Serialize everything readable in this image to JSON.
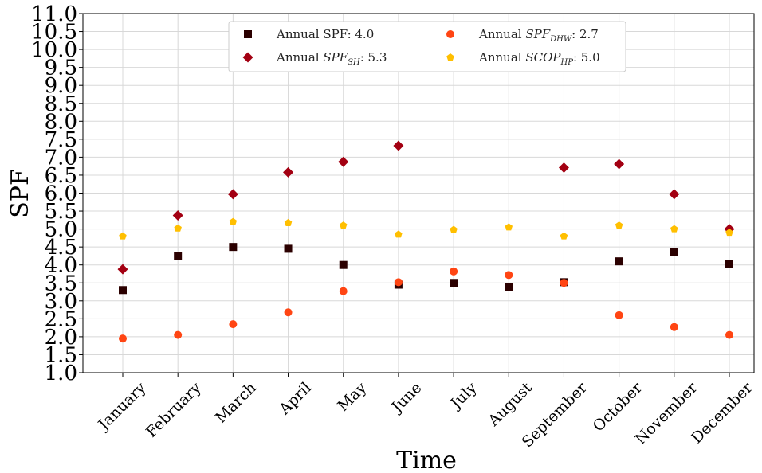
{
  "chart_data": {
    "type": "scatter",
    "xlabel": "Time",
    "ylabel": "SPF",
    "categories": [
      "January",
      "February",
      "March",
      "April",
      "May",
      "June",
      "July",
      "August",
      "September",
      "October",
      "November",
      "December"
    ],
    "ylim": [
      1.0,
      11.0
    ],
    "yticks": [
      "1.0",
      "1.5",
      "2.0",
      "2.5",
      "3.0",
      "3.5",
      "4.0",
      "4.5",
      "5.0",
      "5.5",
      "6.0",
      "6.5",
      "7.0",
      "7.5",
      "8.0",
      "8.5",
      "9.0",
      "9.5",
      "10.0",
      "10.5",
      "11.0"
    ],
    "grid": true,
    "legend_position": "top-center",
    "series": [
      {
        "name": "Annual SPF: 4.0",
        "legend_parts": {
          "pre": "Annual SPF: 4.0",
          "italic": "",
          "sub": "",
          "post": ""
        },
        "marker": "square",
        "color": "#2b0000",
        "values": [
          3.3,
          4.25,
          4.5,
          4.45,
          4.0,
          3.45,
          3.5,
          3.38,
          3.52,
          4.1,
          4.37,
          4.02
        ]
      },
      {
        "name": "Annual SPF_SH: 5.3",
        "legend_parts": {
          "pre": "Annual ",
          "italic": "SPF",
          "sub": "SH",
          "post": ": 5.3"
        },
        "marker": "diamond",
        "color": "#a30012",
        "values": [
          3.88,
          5.38,
          5.97,
          6.58,
          6.87,
          7.32,
          null,
          null,
          6.71,
          6.81,
          5.97,
          5.0
        ]
      },
      {
        "name": "Annual SPF_DHW: 2.7",
        "legend_parts": {
          "pre": "Annual ",
          "italic": "SPF",
          "sub": "DHW",
          "post": ": 2.7"
        },
        "marker": "circle",
        "color": "#ff4513",
        "values": [
          1.95,
          2.05,
          2.35,
          2.68,
          3.27,
          3.52,
          3.82,
          3.72,
          3.5,
          2.6,
          2.27,
          2.05
        ]
      },
      {
        "name": "Annual SCOP_HP: 5.0",
        "legend_parts": {
          "pre": "Annual ",
          "italic": "SCOP",
          "sub": "HP",
          "post": ": 5.0"
        },
        "marker": "pentagon",
        "color": "#ffbf00",
        "values": [
          4.8,
          5.02,
          5.2,
          5.17,
          5.1,
          4.85,
          4.98,
          5.05,
          4.8,
          5.1,
          5.0,
          4.9
        ]
      }
    ]
  }
}
